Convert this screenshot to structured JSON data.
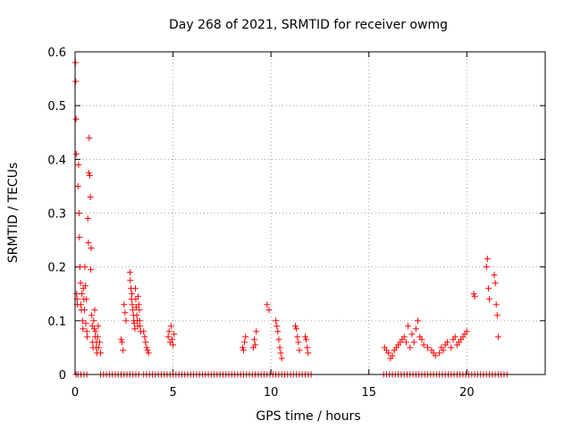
{
  "chart_data": {
    "type": "scatter",
    "title": "Day 268 of 2021, SRMTID for receiver owmg",
    "xlabel": "GPS time / hours",
    "ylabel": "SRMTID / TECUs",
    "xlim": [
      0,
      24
    ],
    "ylim": [
      0,
      0.6
    ],
    "xticks": [
      0,
      5,
      10,
      15,
      20
    ],
    "yticks": [
      0,
      0.1,
      0.2,
      0.3,
      0.4,
      0.5,
      0.6
    ],
    "xtick_labels": [
      "0",
      "5",
      "10",
      "15",
      "20"
    ],
    "ytick_labels": [
      "0",
      "0.1",
      "0.2",
      "0.3",
      "0.4",
      "0.5",
      "0.6"
    ],
    "grid": true,
    "marker": "+",
    "color": "#ff0000",
    "series": [
      {
        "name": "SRMTID",
        "x": [
          0.02,
          0.03,
          0.05,
          0.06,
          0.08,
          0.1,
          0.12,
          0.15,
          0.18,
          0.2,
          0.22,
          0.25,
          0.28,
          0.3,
          0.32,
          0.35,
          0.38,
          0.4,
          0.42,
          0.45,
          0.48,
          0.5,
          0.52,
          0.55,
          0.58,
          0.6,
          0.62,
          0.65,
          0.68,
          0.7,
          0.72,
          0.75,
          0.78,
          0.8,
          0.82,
          0.85,
          0.88,
          0.9,
          0.92,
          0.95,
          0.98,
          1.0,
          1.02,
          1.05,
          1.08,
          1.1,
          1.12,
          1.15,
          1.18,
          1.2,
          1.25,
          1.3,
          2.35,
          2.4,
          2.45,
          2.5,
          2.55,
          2.6,
          2.8,
          2.82,
          2.85,
          2.88,
          2.9,
          2.92,
          2.95,
          2.98,
          3.0,
          3.02,
          3.05,
          3.08,
          3.1,
          3.12,
          3.15,
          3.18,
          3.2,
          3.22,
          3.25,
          3.28,
          3.3,
          3.32,
          3.35,
          3.5,
          3.55,
          3.6,
          3.65,
          3.7,
          3.75,
          4.75,
          4.8,
          4.85,
          4.9,
          4.95,
          5.0,
          5.05,
          8.55,
          8.6,
          8.65,
          8.7,
          9.1,
          9.15,
          9.2,
          9.25,
          9.8,
          9.9,
          10.25,
          10.3,
          10.35,
          10.4,
          10.45,
          10.5,
          10.55,
          11.25,
          11.3,
          11.35,
          11.4,
          11.45,
          11.75,
          11.8,
          11.85,
          11.9,
          15.8,
          15.9,
          16.0,
          16.1,
          16.2,
          16.3,
          16.4,
          16.5,
          16.6,
          16.7,
          16.8,
          16.9,
          17.0,
          17.1,
          17.2,
          17.3,
          17.4,
          17.5,
          17.6,
          17.7,
          17.8,
          18.0,
          18.2,
          18.3,
          18.4,
          18.6,
          18.7,
          18.8,
          18.9,
          19.0,
          19.2,
          19.3,
          19.4,
          19.5,
          19.6,
          19.7,
          19.8,
          19.9,
          20.0,
          20.35,
          20.4,
          21.0,
          21.05,
          21.1,
          21.15,
          21.4,
          21.45,
          21.5,
          21.55,
          21.6
        ],
        "y": [
          0.58,
          0.545,
          0.475,
          0.41,
          0.15,
          0.14,
          0.13,
          0.35,
          0.39,
          0.3,
          0.255,
          0.2,
          0.17,
          0.13,
          0.12,
          0.15,
          0.1,
          0.085,
          0.16,
          0.14,
          0.12,
          0.2,
          0.165,
          0.095,
          0.14,
          0.08,
          0.07,
          0.29,
          0.245,
          0.375,
          0.44,
          0.37,
          0.33,
          0.195,
          0.235,
          0.11,
          0.09,
          0.06,
          0.05,
          0.1,
          0.085,
          0.12,
          0.07,
          0.08,
          0.05,
          0.06,
          0.04,
          0.07,
          0.09,
          0.05,
          0.06,
          0.04,
          0.065,
          0.06,
          0.045,
          0.13,
          0.115,
          0.1,
          0.19,
          0.175,
          0.16,
          0.14,
          0.15,
          0.13,
          0.12,
          0.11,
          0.1,
          0.095,
          0.085,
          0.16,
          0.14,
          0.125,
          0.11,
          0.1,
          0.09,
          0.145,
          0.13,
          0.12,
          0.1,
          0.09,
          0.08,
          0.08,
          0.07,
          0.06,
          0.05,
          0.045,
          0.04,
          0.07,
          0.08,
          0.06,
          0.09,
          0.065,
          0.055,
          0.075,
          0.05,
          0.045,
          0.06,
          0.07,
          0.05,
          0.065,
          0.055,
          0.08,
          0.13,
          0.12,
          0.1,
          0.09,
          0.08,
          0.065,
          0.05,
          0.04,
          0.03,
          0.09,
          0.085,
          0.07,
          0.06,
          0.045,
          0.07,
          0.065,
          0.05,
          0.04,
          0.05,
          0.045,
          0.04,
          0.03,
          0.035,
          0.045,
          0.05,
          0.055,
          0.06,
          0.065,
          0.07,
          0.06,
          0.09,
          0.05,
          0.075,
          0.06,
          0.085,
          0.1,
          0.07,
          0.065,
          0.055,
          0.05,
          0.045,
          0.04,
          0.035,
          0.04,
          0.05,
          0.045,
          0.055,
          0.06,
          0.05,
          0.065,
          0.07,
          0.055,
          0.06,
          0.065,
          0.07,
          0.075,
          0.08,
          0.15,
          0.145,
          0.2,
          0.215,
          0.16,
          0.14,
          0.185,
          0.17,
          0.13,
          0.11,
          0.07
        ]
      },
      {
        "name": "zero baseline",
        "x": [
          0.05,
          0.15,
          0.3,
          0.45,
          0.6,
          1.3,
          1.45,
          1.6,
          1.75,
          1.9,
          2.05,
          2.2,
          2.35,
          2.5,
          2.65,
          2.8,
          2.95,
          3.1,
          3.25,
          3.5,
          3.65,
          3.8,
          3.95,
          4.1,
          4.25,
          4.4,
          4.55,
          4.7,
          4.85,
          5.0,
          5.15,
          5.3,
          5.45,
          5.6,
          5.75,
          5.9,
          6.05,
          6.2,
          6.35,
          6.5,
          6.65,
          6.8,
          6.95,
          7.1,
          7.25,
          7.4,
          7.55,
          7.7,
          7.85,
          8.0,
          8.15,
          8.3,
          8.45,
          8.6,
          8.75,
          8.9,
          9.05,
          9.2,
          9.35,
          9.5,
          9.65,
          9.8,
          9.95,
          10.1,
          10.25,
          10.4,
          10.55,
          10.7,
          10.85,
          11.0,
          11.15,
          11.3,
          11.45,
          11.6,
          11.75,
          11.9,
          12.05,
          15.75,
          15.9,
          16.05,
          16.2,
          16.35,
          16.5,
          16.65,
          16.8,
          16.95,
          17.1,
          17.25,
          17.4,
          17.55,
          17.7,
          17.85,
          18.0,
          18.15,
          18.3,
          18.45,
          18.6,
          18.75,
          18.9,
          19.05,
          19.2,
          19.35,
          19.5,
          19.65,
          19.8,
          19.95,
          20.1,
          20.25,
          20.4,
          20.55,
          20.7,
          20.85,
          21.0,
          21.15,
          21.3,
          21.45,
          21.6,
          21.75,
          21.9,
          22.05
        ],
        "y": [
          0,
          0,
          0,
          0,
          0,
          0,
          0,
          0,
          0,
          0,
          0,
          0,
          0,
          0,
          0,
          0,
          0,
          0,
          0,
          0,
          0,
          0,
          0,
          0,
          0,
          0,
          0,
          0,
          0,
          0,
          0,
          0,
          0,
          0,
          0,
          0,
          0,
          0,
          0,
          0,
          0,
          0,
          0,
          0,
          0,
          0,
          0,
          0,
          0,
          0,
          0,
          0,
          0,
          0,
          0,
          0,
          0,
          0,
          0,
          0,
          0,
          0,
          0,
          0,
          0,
          0,
          0,
          0,
          0,
          0,
          0,
          0,
          0,
          0,
          0,
          0,
          0,
          0,
          0,
          0,
          0,
          0,
          0,
          0,
          0,
          0,
          0,
          0,
          0,
          0,
          0,
          0,
          0,
          0,
          0,
          0,
          0,
          0,
          0,
          0,
          0,
          0,
          0,
          0,
          0,
          0,
          0,
          0,
          0,
          0,
          0,
          0,
          0,
          0,
          0,
          0,
          0,
          0,
          0,
          0
        ]
      }
    ]
  }
}
